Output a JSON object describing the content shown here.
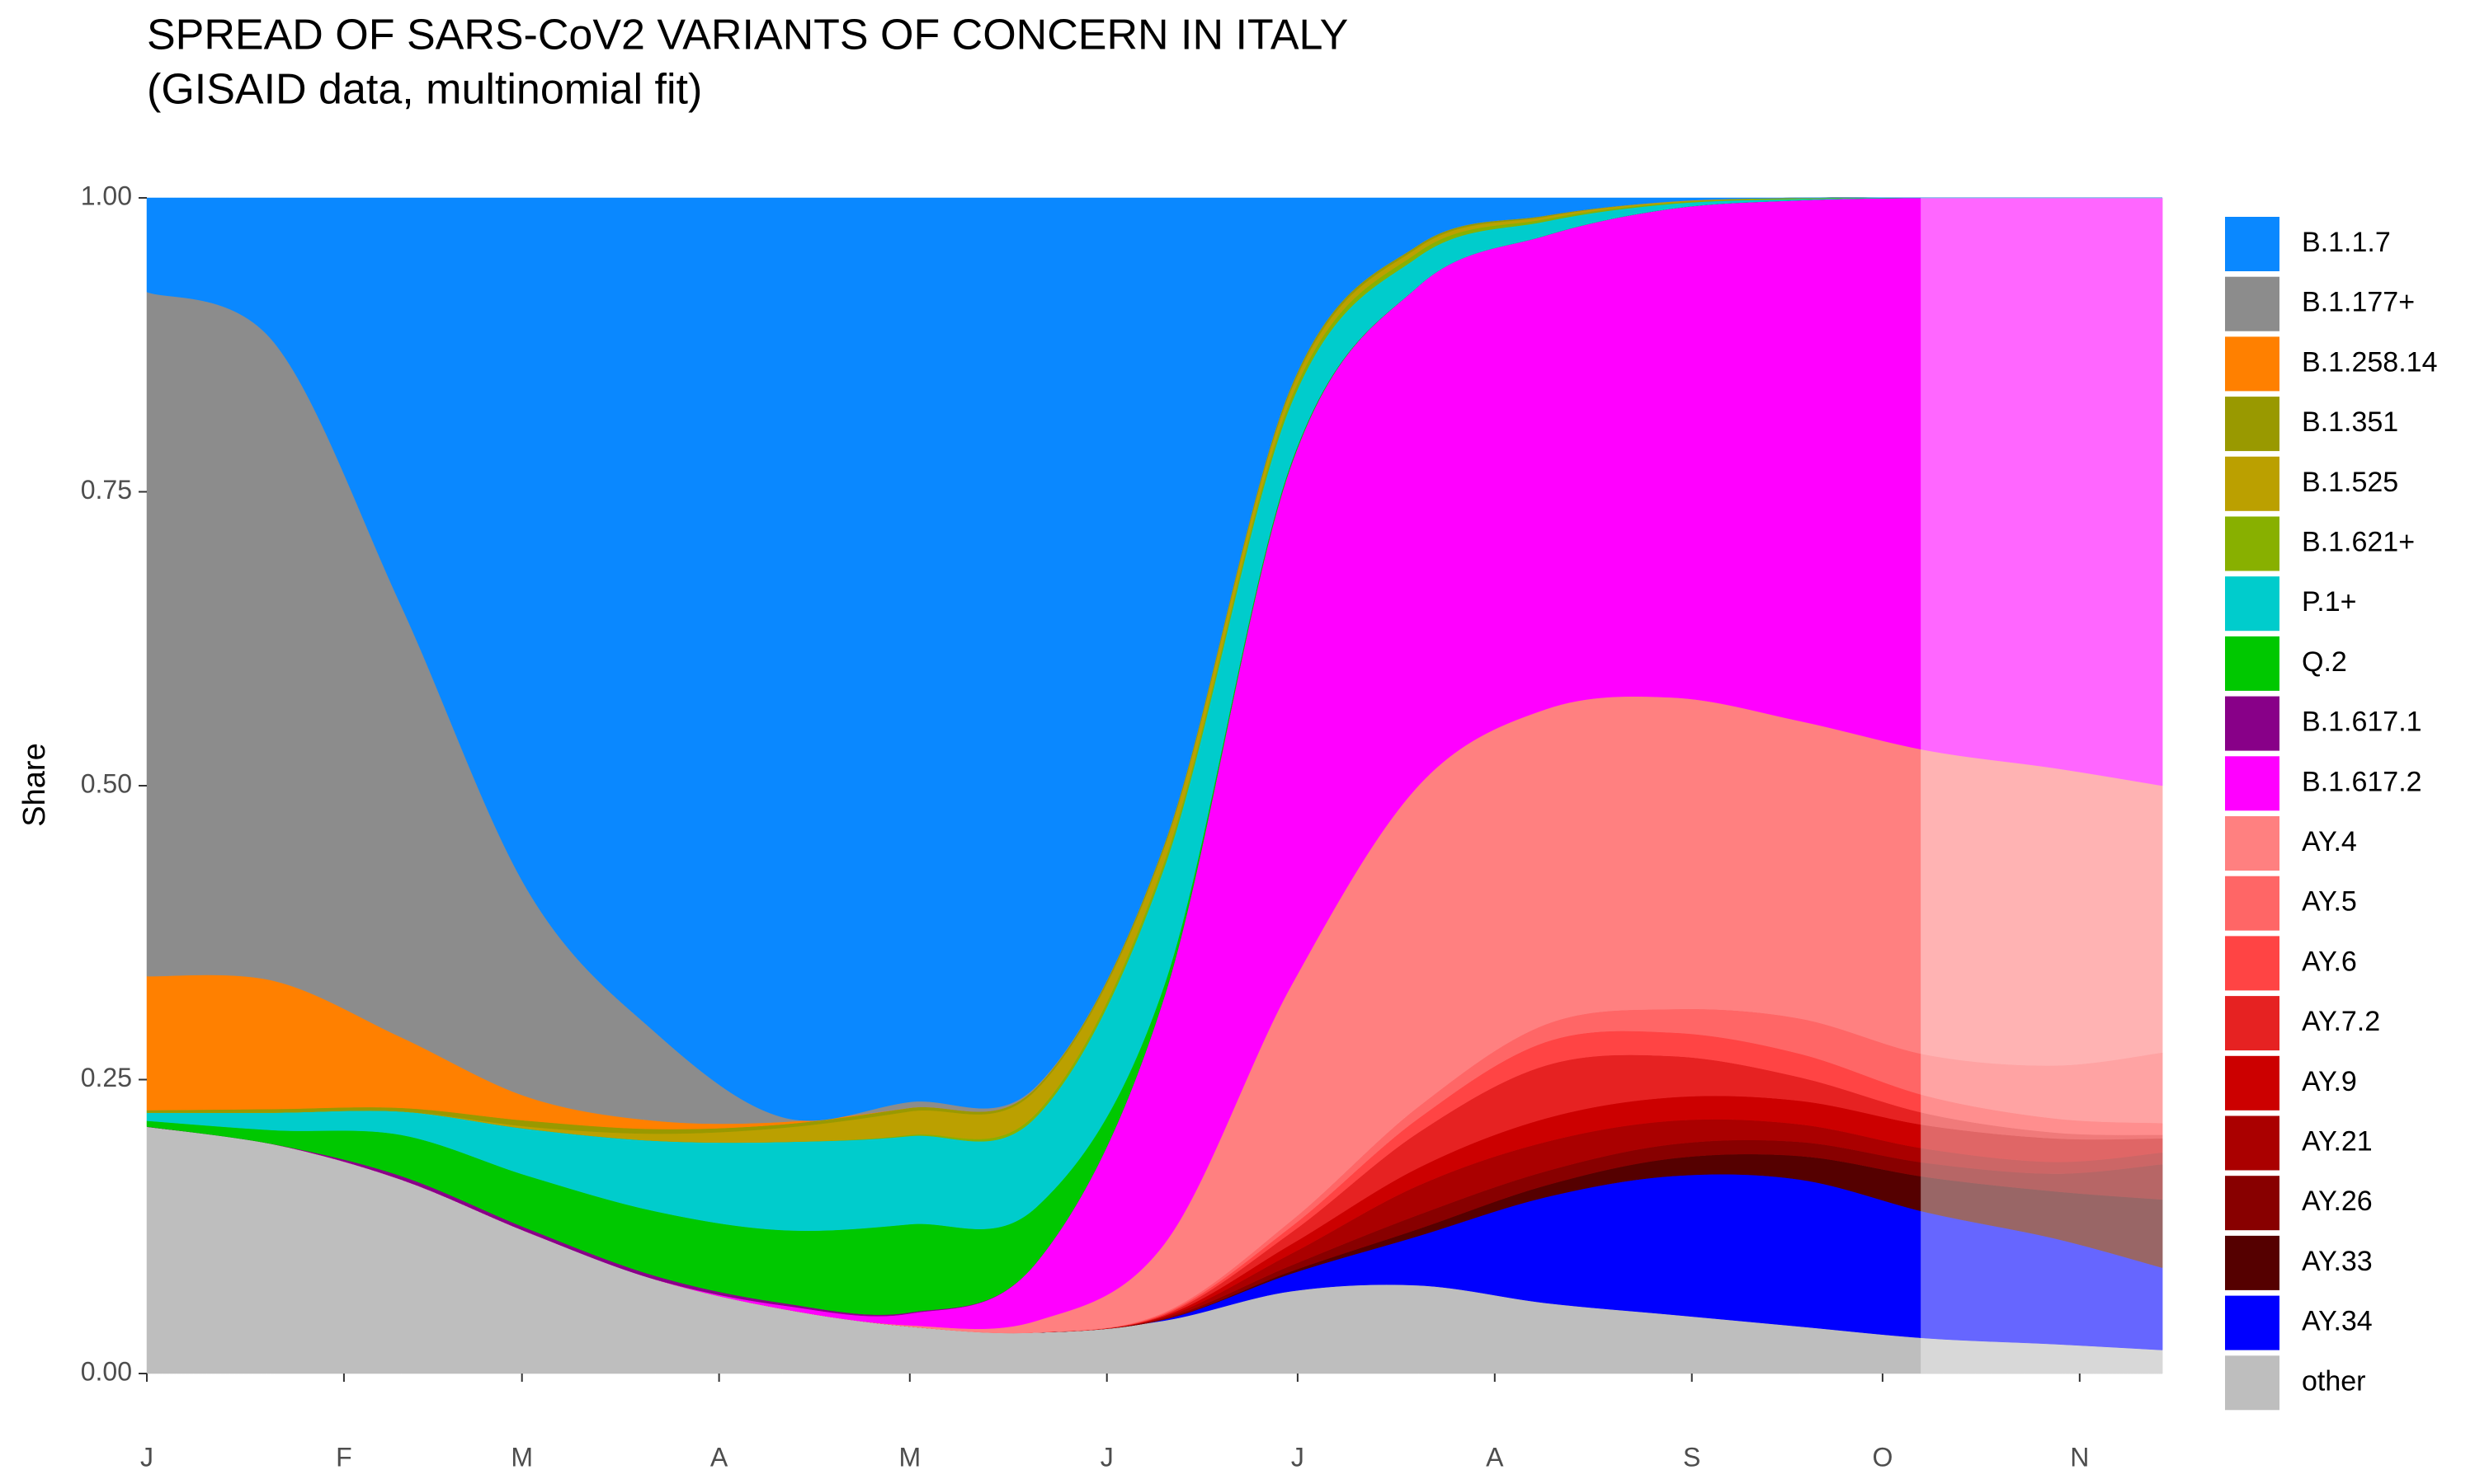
{
  "chart_data": {
    "type": "stacked_area",
    "title": "SPREAD OF SARS-CoV2 VARIANTS OF CONCERN IN ITALY",
    "subtitle": "(GISAID data, multinomial fit)",
    "y_label": "Share",
    "x": [
      0,
      20,
      40,
      60,
      80,
      100,
      120,
      140,
      160,
      180,
      200,
      220,
      240,
      260,
      280,
      300,
      317
    ],
    "xlim": [
      0,
      317
    ],
    "xticks": [
      {
        "value": 0,
        "label": "J"
      },
      {
        "value": 31,
        "label": "F"
      },
      {
        "value": 59,
        "label": "M"
      },
      {
        "value": 90,
        "label": "A"
      },
      {
        "value": 120,
        "label": "M"
      },
      {
        "value": 151,
        "label": "J"
      },
      {
        "value": 181,
        "label": "J"
      },
      {
        "value": 212,
        "label": "A"
      },
      {
        "value": 243,
        "label": "S"
      },
      {
        "value": 273,
        "label": "O"
      },
      {
        "value": 304,
        "label": "N"
      }
    ],
    "ylim": [
      0,
      1
    ],
    "yticks": [
      {
        "value": 0,
        "label": "0.00"
      },
      {
        "value": 0.25,
        "label": "0.25"
      },
      {
        "value": 0.5,
        "label": "0.50"
      },
      {
        "value": 0.75,
        "label": "0.75"
      },
      {
        "value": 1,
        "label": "1.00"
      }
    ],
    "shaded_from": 279,
    "legend": "right",
    "series": [
      {
        "name": "B.1.1.7",
        "color": "#0A88FF",
        "values": [
          0.08,
          0.123,
          0.347,
          0.59,
          0.71,
          0.782,
          0.769,
          0.755,
          0.55,
          0.16,
          0.04,
          0.015,
          0.003,
          0,
          0,
          0,
          0
        ]
      },
      {
        "name": "B.1.177+",
        "color": "#8C8C8C",
        "values": [
          0.582,
          0.543,
          0.367,
          0.175,
          0.075,
          0.004,
          0.005,
          0.001,
          0,
          0,
          0,
          0,
          0,
          0,
          0,
          0,
          0
        ]
      },
      {
        "name": "B.1.258.14",
        "color": "#FF8000",
        "values": [
          0.114,
          0.109,
          0.06,
          0.02,
          0.007,
          0.002,
          0,
          0,
          0,
          0,
          0,
          0,
          0,
          0,
          0,
          0,
          0
        ]
      },
      {
        "name": "B.1.351",
        "color": "#999900",
        "values": [
          0.002,
          0.003,
          0.003,
          0.005,
          0.004,
          0.003,
          0.003,
          0.002,
          0.003,
          0.003,
          0.002,
          0.001,
          0,
          0,
          0,
          0,
          0
        ]
      },
      {
        "name": "B.1.525",
        "color": "#BBA000",
        "values": [
          0,
          0,
          0,
          0.002,
          0.006,
          0.012,
          0.02,
          0.02,
          0.012,
          0.007,
          0.004,
          0.002,
          0.001,
          0,
          0,
          0,
          0
        ]
      },
      {
        "name": "B.1.621+",
        "color": "#88B000",
        "values": [
          0,
          0,
          0,
          0,
          0,
          0,
          0.001,
          0.003,
          0.005,
          0.005,
          0.004,
          0.002,
          0.001,
          0.001,
          0,
          0,
          0
        ]
      },
      {
        "name": "P.1+",
        "color": "#00CCCC",
        "values": [
          0.007,
          0.015,
          0.02,
          0.04,
          0.06,
          0.075,
          0.075,
          0.077,
          0.1,
          0.05,
          0.025,
          0.012,
          0.004,
          0.001,
          0,
          0,
          0
        ]
      },
      {
        "name": "Q.2",
        "color": "#00C800",
        "values": [
          0.005,
          0.012,
          0.035,
          0.045,
          0.055,
          0.062,
          0.075,
          0.047,
          0.01,
          0.002,
          0,
          0,
          0,
          0,
          0,
          0,
          0
        ]
      },
      {
        "name": "B.1.617.1",
        "color": "#880088",
        "values": [
          0,
          0,
          0.003,
          0.003,
          0.003,
          0.002,
          0.001,
          0,
          0,
          0,
          0,
          0,
          0,
          0,
          0,
          0,
          0
        ]
      },
      {
        "name": "B.1.617.2",
        "color": "#FF00FF",
        "values": [
          0,
          0,
          0,
          0,
          0,
          0.003,
          0.01,
          0.05,
          0.21,
          0.443,
          0.425,
          0.403,
          0.416,
          0.443,
          0.47,
          0.485,
          0.5
        ]
      },
      {
        "name": "AY.4",
        "color": "#FF8080",
        "values": [
          0,
          0,
          0,
          0,
          0,
          0,
          0.001,
          0.01,
          0.058,
          0.2,
          0.273,
          0.268,
          0.265,
          0.253,
          0.259,
          0.253,
          0.227
        ]
      },
      {
        "name": "AY.5",
        "color": "#FF6666",
        "values": [
          0,
          0,
          0,
          0,
          0,
          0,
          0,
          0,
          0.001,
          0.005,
          0.01,
          0.015,
          0.02,
          0.03,
          0.035,
          0.045,
          0.06
        ]
      },
      {
        "name": "AY.6",
        "color": "#FF4444",
        "values": [
          0,
          0,
          0,
          0,
          0,
          0,
          0,
          0,
          0.001,
          0.005,
          0.012,
          0.02,
          0.02,
          0.02,
          0.015,
          0.012,
          0.01
        ]
      },
      {
        "name": "AY.7.2",
        "color": "#E62222",
        "values": [
          0,
          0,
          0,
          0,
          0,
          0,
          0,
          0,
          0.001,
          0.01,
          0.03,
          0.045,
          0.035,
          0.02,
          0.01,
          0.005,
          0.003
        ]
      },
      {
        "name": "AY.9",
        "color": "#CC0000",
        "values": [
          0,
          0,
          0,
          0,
          0,
          0,
          0,
          0,
          0.001,
          0.008,
          0.015,
          0.02,
          0.02,
          0.02,
          0.02,
          0.02,
          0.012
        ]
      },
      {
        "name": "AY.21",
        "color": "#AA0000",
        "values": [
          0,
          0,
          0,
          0,
          0,
          0,
          0,
          0,
          0.001,
          0.01,
          0.025,
          0.025,
          0.02,
          0.015,
          0.012,
          0.01,
          0.01
        ]
      },
      {
        "name": "AY.26",
        "color": "#880000",
        "values": [
          0,
          0,
          0,
          0,
          0,
          0,
          0,
          0,
          0.001,
          0.005,
          0.012,
          0.012,
          0.012,
          0.012,
          0.012,
          0.015,
          0.03
        ]
      },
      {
        "name": "AY.33",
        "color": "#550000",
        "values": [
          0,
          0,
          0,
          0,
          0,
          0,
          0,
          0,
          0,
          0.002,
          0.006,
          0.01,
          0.015,
          0.02,
          0.03,
          0.04,
          0.058
        ]
      },
      {
        "name": "AY.34",
        "color": "#0000FF",
        "values": [
          0,
          0,
          0,
          0,
          0,
          0,
          0,
          0,
          0.001,
          0.015,
          0.042,
          0.09,
          0.118,
          0.125,
          0.107,
          0.09,
          0.07
        ]
      },
      {
        "name": "other",
        "color": "#BEBEBE",
        "values": [
          0.21,
          0.195,
          0.165,
          0.12,
          0.08,
          0.055,
          0.04,
          0.035,
          0.045,
          0.07,
          0.075,
          0.06,
          0.05,
          0.04,
          0.03,
          0.025,
          0.02
        ]
      }
    ]
  }
}
